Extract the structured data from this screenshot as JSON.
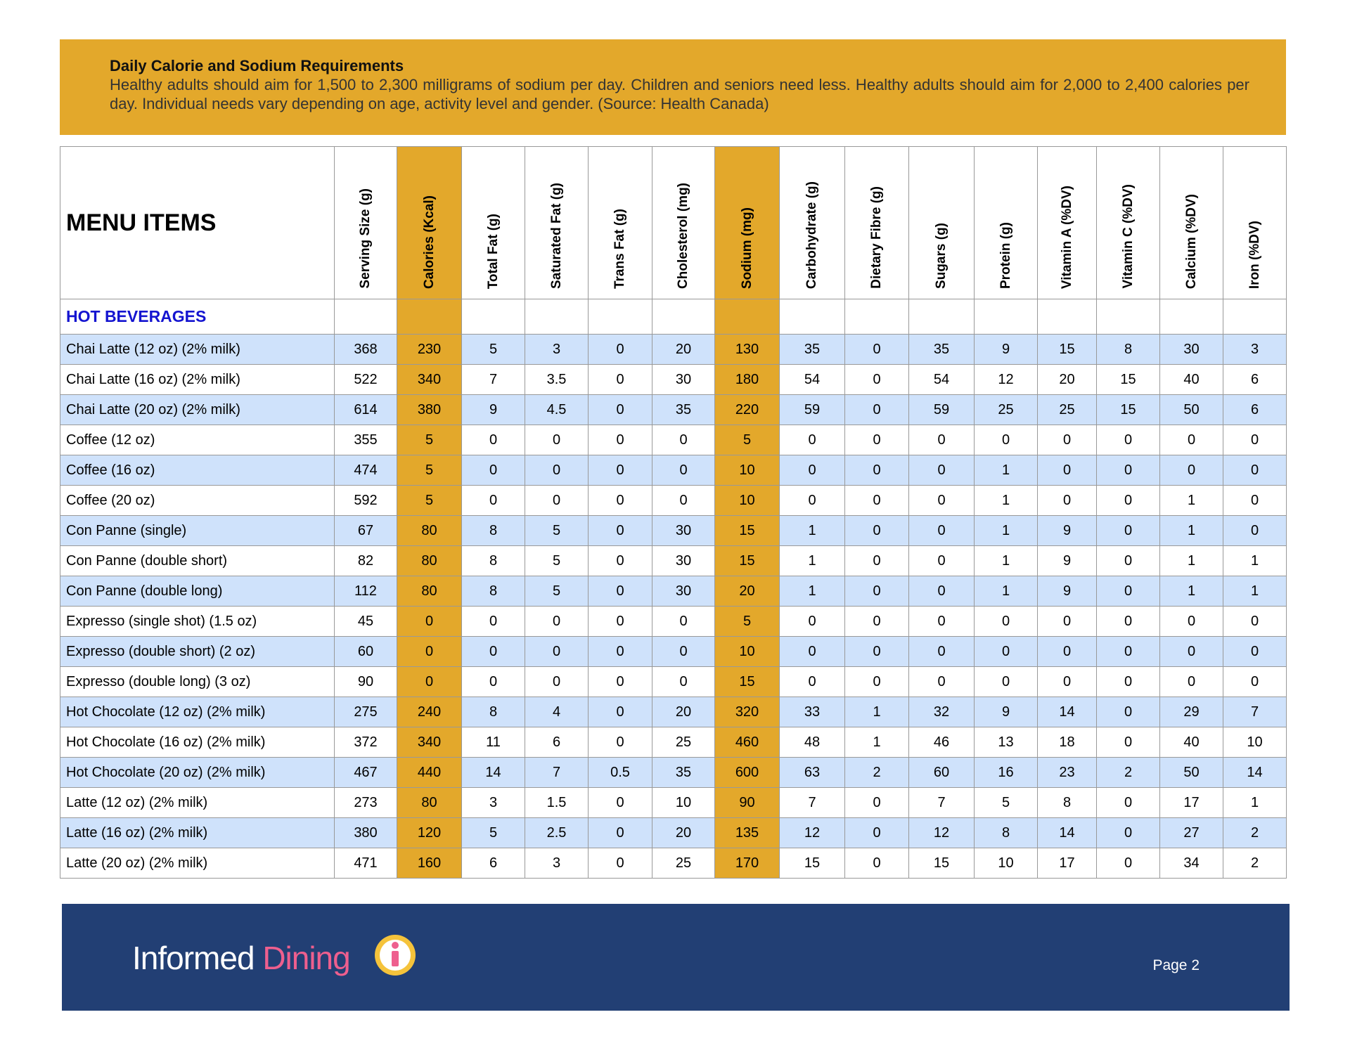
{
  "banner": {
    "title": "Daily Calorie and Sodium Requirements",
    "text": "Healthy adults should aim for 1,500 to 2,300 milligrams of sodium per day. Children and seniors need less. Healthy adults should aim for 2,000 to 2,400 calories per day. Individual needs vary depending on age, activity level and gender. (Source: Health Canada)"
  },
  "table": {
    "header_title": "MENU ITEMS",
    "columns": [
      "Serving Size (g)",
      "Calories (Kcal)",
      "Total Fat (g)",
      "Saturated Fat (g)",
      "Trans Fat (g)",
      "Cholesterol (mg)",
      "Sodium (mg)",
      "Carbohydrate (g)",
      "Dietary Fibre (g)",
      "Sugars  (g)",
      "Protein (g)",
      "Vitamin A (%DV)",
      "Vitamin C (%DV)",
      "Calcium (%DV)",
      "Iron (%DV)"
    ],
    "section": "HOT BEVERAGES",
    "rows": [
      {
        "name": "Chai Latte (12 oz) (2% milk)",
        "values": [
          368,
          230,
          5,
          3,
          0,
          20,
          130,
          35,
          0,
          35,
          9,
          15,
          8,
          30,
          3
        ]
      },
      {
        "name": "Chai Latte (16 oz) (2% milk)",
        "values": [
          522,
          340,
          7,
          3.5,
          0,
          30,
          180,
          54,
          0,
          54,
          12,
          20,
          15,
          40,
          6
        ]
      },
      {
        "name": "Chai Latte (20 oz) (2% milk)",
        "values": [
          614,
          380,
          9,
          4.5,
          0,
          35,
          220,
          59,
          0,
          59,
          25,
          25,
          15,
          50,
          6
        ]
      },
      {
        "name": "Coffee (12 oz)",
        "values": [
          355,
          5,
          0,
          0,
          0,
          0,
          5,
          0,
          0,
          0,
          0,
          0,
          0,
          0,
          0
        ]
      },
      {
        "name": "Coffee (16 oz)",
        "values": [
          474,
          5,
          0,
          0,
          0,
          0,
          10,
          0,
          0,
          0,
          1,
          0,
          0,
          0,
          0
        ]
      },
      {
        "name": "Coffee (20 oz)",
        "values": [
          592,
          5,
          0,
          0,
          0,
          0,
          10,
          0,
          0,
          0,
          1,
          0,
          0,
          1,
          0
        ]
      },
      {
        "name": "Con Panne (single)",
        "values": [
          67,
          80,
          8,
          5,
          0,
          30,
          15,
          1,
          0,
          0,
          1,
          9,
          0,
          1,
          0
        ]
      },
      {
        "name": "Con Panne (double short)",
        "values": [
          82,
          80,
          8,
          5,
          0,
          30,
          15,
          1,
          0,
          0,
          1,
          9,
          0,
          1,
          1
        ]
      },
      {
        "name": "Con Panne (double long)",
        "values": [
          112,
          80,
          8,
          5,
          0,
          30,
          20,
          1,
          0,
          0,
          1,
          9,
          0,
          1,
          1
        ]
      },
      {
        "name": "Expresso (single shot) (1.5 oz)",
        "values": [
          45,
          0,
          0,
          0,
          0,
          0,
          5,
          0,
          0,
          0,
          0,
          0,
          0,
          0,
          0
        ]
      },
      {
        "name": "Expresso (double short) (2 oz)",
        "values": [
          60,
          0,
          0,
          0,
          0,
          0,
          10,
          0,
          0,
          0,
          0,
          0,
          0,
          0,
          0
        ]
      },
      {
        "name": "Expresso (double long) (3 oz)",
        "values": [
          90,
          0,
          0,
          0,
          0,
          0,
          15,
          0,
          0,
          0,
          0,
          0,
          0,
          0,
          0
        ]
      },
      {
        "name": "Hot Chocolate (12 oz) (2% milk)",
        "values": [
          275,
          240,
          8,
          4,
          0,
          20,
          320,
          33,
          1,
          32,
          9,
          14,
          0,
          29,
          7
        ]
      },
      {
        "name": "Hot Chocolate (16 oz) (2% milk)",
        "values": [
          372,
          340,
          11,
          6,
          0,
          25,
          460,
          48,
          1,
          46,
          13,
          18,
          0,
          40,
          10
        ]
      },
      {
        "name": "Hot Chocolate (20 oz) (2% milk)",
        "values": [
          467,
          440,
          14,
          7,
          0.5,
          35,
          600,
          63,
          2,
          60,
          16,
          23,
          2,
          50,
          14
        ]
      },
      {
        "name": "Latte (12 oz) (2% milk)",
        "values": [
          273,
          80,
          3,
          1.5,
          0,
          10,
          90,
          7,
          0,
          7,
          5,
          8,
          0,
          17,
          1
        ]
      },
      {
        "name": "Latte (16 oz) (2% milk)",
        "values": [
          380,
          120,
          5,
          2.5,
          0,
          20,
          135,
          12,
          0,
          12,
          8,
          14,
          0,
          27,
          2
        ]
      },
      {
        "name": "Latte (20 oz) (2% milk)",
        "values": [
          471,
          160,
          6,
          3,
          0,
          25,
          170,
          15,
          0,
          15,
          10,
          17,
          0,
          34,
          2
        ]
      }
    ]
  },
  "footer": {
    "logo_first": "Informed",
    "logo_second": "Dining",
    "page": "Page 2"
  }
}
